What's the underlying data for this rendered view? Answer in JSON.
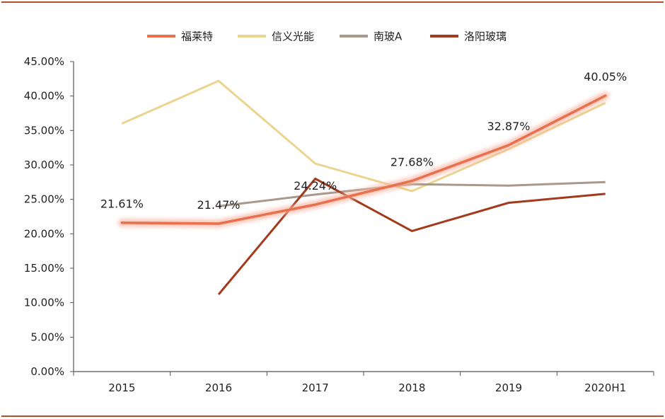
{
  "chart_data": {
    "type": "line",
    "title": "",
    "xlabel": "",
    "ylabel": "",
    "categories": [
      "2015",
      "2016",
      "2017",
      "2018",
      "2019",
      "2020H1"
    ],
    "ylim": [
      0,
      45
    ],
    "yticks": [
      "0.00%",
      "5.00%",
      "10.00%",
      "15.00%",
      "20.00%",
      "25.00%",
      "30.00%",
      "35.00%",
      "40.00%",
      "45.00%"
    ],
    "legend_position": "top",
    "grid": false,
    "series": [
      {
        "name": "福莱特",
        "color": "#e8704c",
        "highlight": true,
        "values": [
          21.61,
          21.47,
          24.24,
          27.68,
          32.87,
          40.05
        ],
        "labels": [
          "21.61%",
          "21.47%",
          "24.24%",
          "27.68%",
          "32.87%",
          "40.05%"
        ]
      },
      {
        "name": "信义光能",
        "color": "#ead48f",
        "values": [
          36.0,
          42.2,
          30.2,
          26.2,
          32.3,
          39.0
        ]
      },
      {
        "name": "南玻A",
        "color": "#a8998a",
        "values": [
          null,
          24.0,
          25.7,
          27.2,
          27.0,
          27.5
        ]
      },
      {
        "name": "洛阳玻璃",
        "color": "#a33a1c",
        "values": [
          null,
          11.2,
          28.0,
          20.4,
          24.5,
          25.8
        ]
      }
    ]
  }
}
